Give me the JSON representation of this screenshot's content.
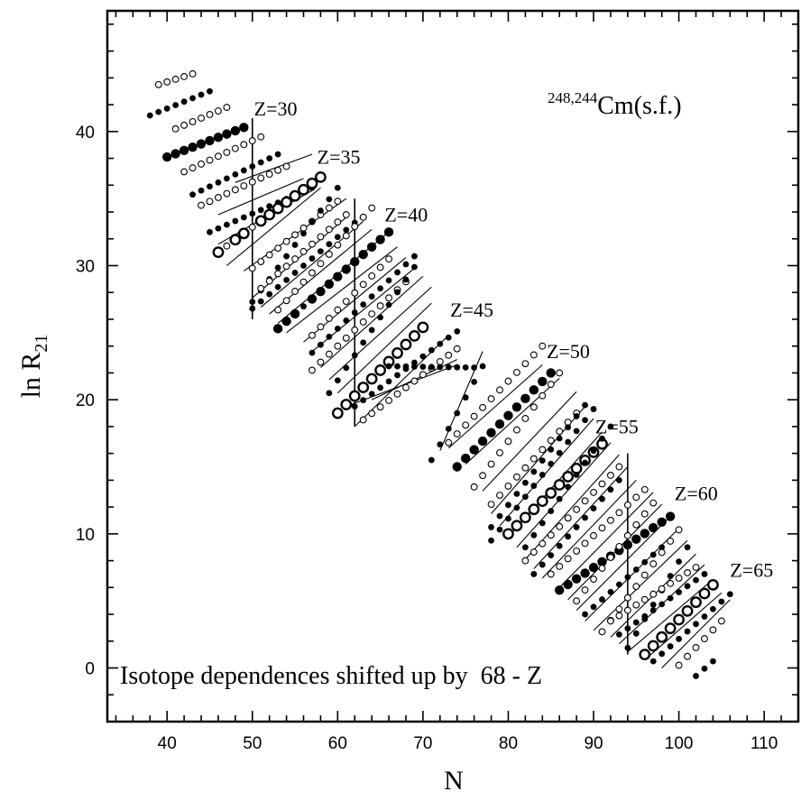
{
  "chart_data": {
    "type": "scatter",
    "title": "",
    "annotation_title": "Cm(s.f.)",
    "annotation_title_sup": "248,244",
    "note": "Isotope dependences shifted up by  68 - Z",
    "xlabel": "N",
    "ylabel_main": "ln R",
    "ylabel_sub": "21",
    "xlim": [
      33,
      114
    ],
    "ylim": [
      -4,
      49
    ],
    "xticks": [
      40,
      50,
      60,
      70,
      80,
      90,
      100,
      110
    ],
    "yticks": [
      0,
      10,
      20,
      30,
      40
    ],
    "grid": false,
    "z_labels": [
      {
        "text": "Z=30",
        "x": 50.2,
        "y": 41.2
      },
      {
        "text": "Z=35",
        "x": 57.6,
        "y": 37.6
      },
      {
        "text": "Z=40",
        "x": 65.5,
        "y": 33.3
      },
      {
        "text": "Z=45",
        "x": 73.2,
        "y": 26.2
      },
      {
        "text": "Z=50",
        "x": 84.5,
        "y": 23.1
      },
      {
        "text": "Z=55",
        "x": 90.2,
        "y": 17.5
      },
      {
        "text": "Z=60",
        "x": 99.5,
        "y": 12.5
      },
      {
        "text": "Z=65",
        "x": 106.0,
        "y": 6.8
      }
    ],
    "vertical_lines": [
      {
        "x": 50,
        "y1": 26,
        "y2": 41
      },
      {
        "x": 62,
        "y1": 18,
        "y2": 35
      },
      {
        "x": 94,
        "y1": 1,
        "y2": 16
      }
    ],
    "series": [
      {
        "z": 28,
        "style": "open",
        "n_start": 39,
        "y_start": 43.5,
        "n_end": 43,
        "y_end": 44.3,
        "highlight": []
      },
      {
        "z": 29,
        "style": "filled",
        "n_start": 38,
        "y_start": 41.2,
        "n_end": 45,
        "y_end": 43.0,
        "highlight": []
      },
      {
        "z": 30,
        "style": "open",
        "n_start": 41,
        "y_start": 40.2,
        "n_end": 47,
        "y_end": 41.8,
        "highlight": []
      },
      {
        "z": 30,
        "style": "filled",
        "n_start": 40,
        "y_start": 38.1,
        "n_end": 49,
        "y_end": 40.3,
        "highlight": [
          40,
          41,
          42,
          43,
          44,
          45,
          46,
          47,
          48,
          49
        ]
      },
      {
        "z": 31,
        "style": "open",
        "n_start": 42,
        "y_start": 37.0,
        "n_end": 51,
        "y_end": 39.6,
        "highlight": []
      },
      {
        "z": 32,
        "style": "filled",
        "n_start": 43,
        "y_start": 35.3,
        "n_end": 53,
        "y_end": 38.3,
        "highlight": []
      },
      {
        "z": 33,
        "style": "open",
        "n_start": 44,
        "y_start": 34.5,
        "n_end": 54,
        "y_end": 37.4,
        "highlight": []
      },
      {
        "z": 34,
        "style": "filled",
        "n_start": 45,
        "y_start": 32.5,
        "n_end": 57,
        "y_end": 35.8,
        "highlight": []
      },
      {
        "z": 35,
        "style": "open",
        "n_start": 46,
        "y_start": 31.0,
        "n_end": 58,
        "y_end": 36.6,
        "highlight": [
          46,
          48,
          49,
          51,
          52,
          53,
          54,
          55,
          56,
          57,
          58
        ]
      },
      {
        "z": 36,
        "style": "open",
        "n_start": 50,
        "y_start": 29.8,
        "n_end": 60,
        "y_end": 34.8,
        "highlight": []
      },
      {
        "z": 37,
        "style": "filled",
        "n_start": 50,
        "y_start": 27.3,
        "n_end": 60,
        "y_end": 35.8,
        "highlight": []
      },
      {
        "z": 38,
        "style": "open",
        "n_start": 51,
        "y_start": 28.3,
        "n_end": 61,
        "y_end": 33.8,
        "highlight": []
      },
      {
        "z": 39,
        "style": "filled",
        "n_start": 50,
        "y_start": 26.8,
        "n_end": 62,
        "y_end": 33.2,
        "highlight": []
      },
      {
        "z": 40,
        "style": "open",
        "n_start": 53,
        "y_start": 26.7,
        "n_end": 64,
        "y_end": 34.3,
        "highlight": []
      },
      {
        "z": 40,
        "style": "filled",
        "n_start": 53,
        "y_start": 25.3,
        "n_end": 66,
        "y_end": 32.5,
        "highlight": [
          53,
          54,
          55,
          57,
          58,
          59,
          60,
          61,
          62,
          63,
          64,
          65,
          66
        ]
      },
      {
        "z": 41,
        "style": "open",
        "n_start": 57,
        "y_start": 24.8,
        "n_end": 66,
        "y_end": 30.5,
        "highlight": []
      },
      {
        "z": 42,
        "style": "filled",
        "n_start": 57,
        "y_start": 23.5,
        "n_end": 69,
        "y_end": 30.7,
        "highlight": []
      },
      {
        "z": 43,
        "style": "open",
        "n_start": 57,
        "y_start": 22.2,
        "n_end": 68,
        "y_end": 28.8,
        "highlight": []
      },
      {
        "z": 44,
        "style": "filled",
        "n_start": 59,
        "y_start": 20.5,
        "n_end": 69,
        "y_end": 29.9,
        "highlight": []
      },
      {
        "z": 44,
        "style": "open",
        "n_start": 60,
        "y_start": 19.0,
        "n_end": 70,
        "y_end": 25.4,
        "highlight": [
          60,
          61,
          62,
          63,
          64,
          65,
          66,
          67,
          68,
          69,
          70
        ]
      },
      {
        "z": 45,
        "style": "filled",
        "n_start": 62,
        "y_start": 19.5,
        "n_end": 74,
        "y_end": 25.1,
        "highlight": []
      },
      {
        "z": 46,
        "style": "open",
        "n_start": 63,
        "y_start": 18.5,
        "n_end": 74,
        "y_end": 23.8,
        "highlight": []
      },
      {
        "z": 47,
        "style": "filled",
        "n_start": 66,
        "y_start": 22.5,
        "n_end": 76,
        "y_end": 22.4,
        "highlight": []
      },
      {
        "z": 48,
        "style": "filled",
        "n_start": 71,
        "y_start": 15.5,
        "n_end": 77,
        "y_end": 22.5,
        "highlight": []
      },
      {
        "z": 49,
        "style": "open",
        "n_start": 73,
        "y_start": 16.8,
        "n_end": 84,
        "y_end": 24.0,
        "highlight": []
      },
      {
        "z": 49,
        "style": "filled",
        "n_start": 74,
        "y_start": 15.0,
        "n_end": 85,
        "y_end": 22.0,
        "highlight": [
          74,
          75,
          76,
          77,
          78,
          79,
          80,
          81,
          82,
          83,
          84,
          85
        ]
      },
      {
        "z": 50,
        "style": "open",
        "n_start": 76,
        "y_start": 13.5,
        "n_end": 86,
        "y_end": 22.0,
        "highlight": []
      },
      {
        "z": 51,
        "style": "open",
        "n_start": 78,
        "y_start": 12.2,
        "n_end": 88,
        "y_end": 19.0,
        "highlight": []
      },
      {
        "z": 52,
        "style": "filled",
        "n_start": 78,
        "y_start": 10.5,
        "n_end": 89,
        "y_end": 19.6,
        "highlight": []
      },
      {
        "z": 53,
        "style": "filled",
        "n_start": 78,
        "y_start": 9.5,
        "n_end": 90,
        "y_end": 19.3,
        "highlight": []
      },
      {
        "z": 54,
        "style": "open",
        "n_start": 80,
        "y_start": 10.0,
        "n_end": 91,
        "y_end": 16.7,
        "highlight": [
          80,
          81,
          82,
          83,
          84,
          85,
          86,
          87,
          88,
          89,
          90,
          91
        ]
      },
      {
        "z": 55,
        "style": "open",
        "n_start": 82,
        "y_start": 8.0,
        "n_end": 93,
        "y_end": 15.0,
        "highlight": []
      },
      {
        "z": 55,
        "style": "filled",
        "n_start": 82,
        "y_start": 9.0,
        "n_end": 92,
        "y_end": 18.0,
        "highlight": []
      },
      {
        "z": 56,
        "style": "filled",
        "n_start": 83,
        "y_start": 7.0,
        "n_end": 93,
        "y_end": 14.0,
        "highlight": []
      },
      {
        "z": 57,
        "style": "open",
        "n_start": 85,
        "y_start": 7.0,
        "n_end": 96,
        "y_end": 13.3,
        "highlight": []
      },
      {
        "z": 58,
        "style": "filled",
        "n_start": 86,
        "y_start": 5.8,
        "n_end": 99,
        "y_end": 11.3,
        "highlight": [
          86,
          87,
          88,
          89,
          90,
          91,
          92,
          93,
          94,
          95,
          96,
          97,
          98,
          99
        ]
      },
      {
        "z": 58,
        "style": "open",
        "n_start": 88,
        "y_start": 5.0,
        "n_end": 97,
        "y_end": 12.3,
        "highlight": []
      },
      {
        "z": 59,
        "style": "filled",
        "n_start": 89,
        "y_start": 4.0,
        "n_end": 98,
        "y_end": 9.0,
        "highlight": []
      },
      {
        "z": 60,
        "style": "open",
        "n_start": 91,
        "y_start": 2.7,
        "n_end": 100,
        "y_end": 10.3,
        "highlight": []
      },
      {
        "z": 61,
        "style": "filled",
        "n_start": 94,
        "y_start": 1.5,
        "n_end": 101,
        "y_end": 9.0,
        "highlight": []
      },
      {
        "z": 62,
        "style": "open",
        "n_start": 92,
        "y_start": 3.5,
        "n_end": 102,
        "y_end": 7.5,
        "highlight": []
      },
      {
        "z": 62,
        "style": "filled",
        "n_start": 93,
        "y_start": 2.5,
        "n_end": 103,
        "y_end": 7.0,
        "highlight": []
      },
      {
        "z": 63,
        "style": "open",
        "n_start": 96,
        "y_start": 1.0,
        "n_end": 104,
        "y_end": 6.2,
        "highlight": [
          96,
          97,
          98,
          99,
          100,
          101,
          102,
          103,
          104
        ]
      },
      {
        "z": 64,
        "style": "filled",
        "n_start": 97,
        "y_start": 0.5,
        "n_end": 106,
        "y_end": 5.5,
        "highlight": []
      },
      {
        "z": 65,
        "style": "open",
        "n_start": 100,
        "y_start": 0.2,
        "n_end": 105,
        "y_end": 3.5,
        "highlight": []
      },
      {
        "z": 66,
        "style": "filled",
        "n_start": 102,
        "y_start": -0.6,
        "n_end": 104,
        "y_end": 0.5,
        "highlight": []
      }
    ],
    "fit_lines": [
      [
        48,
        36.2,
        57,
        38.3
      ],
      [
        46,
        33.8,
        56,
        36.5
      ],
      [
        46,
        31.6,
        57,
        35.6
      ],
      [
        47,
        30.0,
        58,
        35.8
      ],
      [
        49,
        29.6,
        61,
        35.0
      ],
      [
        50,
        27.6,
        61,
        33.6
      ],
      [
        51,
        26.9,
        63,
        33.3
      ],
      [
        52,
        26.4,
        64,
        32.7
      ],
      [
        53,
        25.7,
        66,
        32.5
      ],
      [
        54,
        25.0,
        67,
        31.4
      ],
      [
        56,
        24.3,
        68,
        30.6
      ],
      [
        57,
        23.6,
        69,
        29.8
      ],
      [
        58,
        22.4,
        70,
        29.2
      ],
      [
        59,
        21.5,
        71,
        28.4
      ],
      [
        60,
        20.5,
        71,
        27.2
      ],
      [
        61,
        19.5,
        74,
        22.6
      ],
      [
        62,
        18.0,
        73,
        24.8
      ],
      [
        64,
        20.0,
        74,
        23.0
      ],
      [
        72,
        16.2,
        77,
        23.6
      ],
      [
        73,
        16.4,
        84,
        22.6
      ],
      [
        75,
        15.2,
        86,
        21.6
      ],
      [
        77,
        13.2,
        88,
        20.6
      ],
      [
        78,
        11.5,
        89,
        19.5
      ],
      [
        79,
        10.6,
        90,
        18.6
      ],
      [
        80,
        9.8,
        91,
        17.6
      ],
      [
        81,
        9.0,
        92,
        16.8
      ],
      [
        82,
        8.1,
        93,
        15.9
      ],
      [
        83,
        7.4,
        94,
        15.0
      ],
      [
        84,
        6.7,
        95,
        14.0
      ],
      [
        86,
        6.0,
        97,
        13.1
      ],
      [
        87,
        5.1,
        98,
        12.2
      ],
      [
        88,
        4.3,
        99,
        11.3
      ],
      [
        89,
        3.5,
        100,
        10.4
      ],
      [
        90,
        2.8,
        101,
        9.5
      ],
      [
        92,
        2.3,
        102,
        8.5
      ],
      [
        93,
        1.8,
        103,
        7.7
      ],
      [
        94,
        1.2,
        104,
        6.6
      ],
      [
        96,
        0.6,
        105,
        5.6
      ],
      [
        98,
        0.0,
        106,
        5.1
      ]
    ]
  }
}
